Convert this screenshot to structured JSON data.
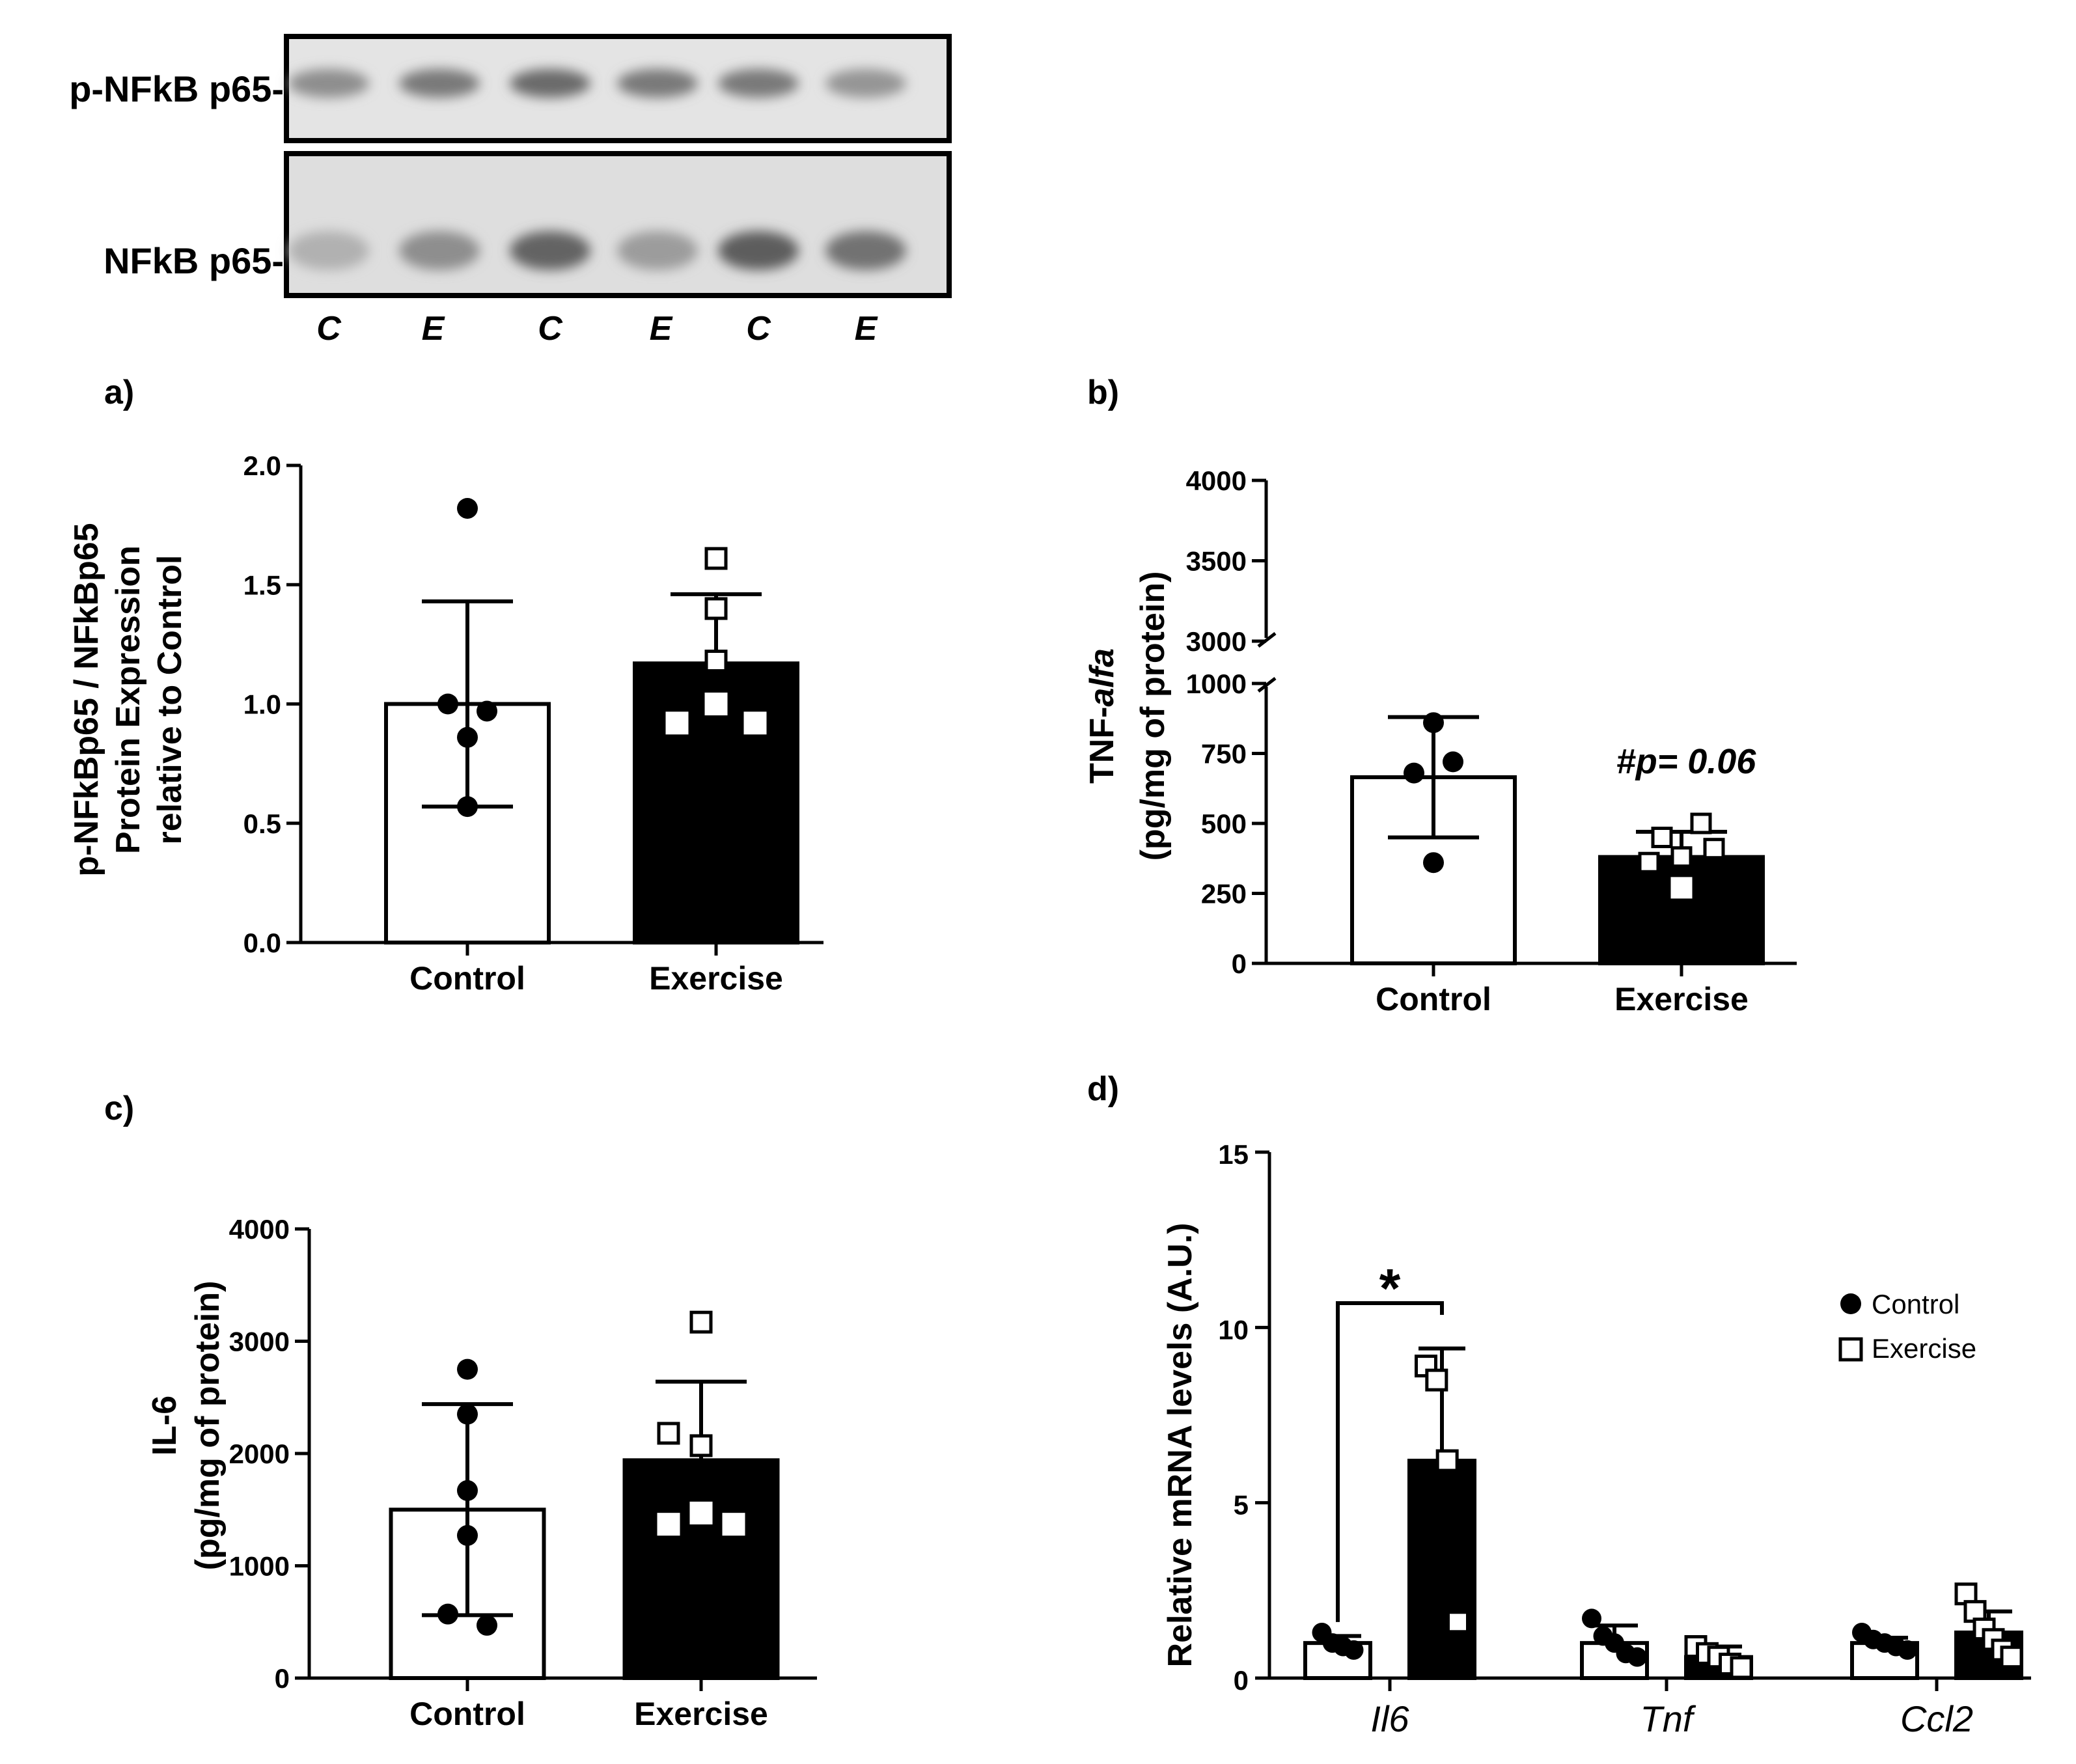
{
  "blot": {
    "rows": [
      {
        "label": "p-NFkB p65-",
        "bands": [
          0.45,
          0.6,
          0.7,
          0.6,
          0.6,
          0.4
        ]
      },
      {
        "label": "NFkB p65-",
        "bands": [
          0.2,
          0.45,
          0.75,
          0.35,
          0.8,
          0.65
        ]
      }
    ],
    "lanes": [
      "C",
      "E",
      "C",
      "E",
      "C",
      "E"
    ]
  },
  "chart_data": [
    {
      "panel": "a)",
      "type": "bar",
      "ylabel": [
        "p-NFkBp65 / NFkBp65",
        "Protein Expression",
        "relative to Control"
      ],
      "ylim": [
        0,
        2.0
      ],
      "yticks": [
        "0.0",
        "0.5",
        "1.0",
        "1.5",
        "2.0"
      ],
      "categories": [
        "Control",
        "Exercise"
      ],
      "values": [
        1.0,
        1.17
      ],
      "sd": [
        0.43,
        0.29
      ],
      "points": [
        [
          1.82,
          1.0,
          0.97,
          0.86,
          0.57
        ],
        [
          1.61,
          1.4,
          1.18,
          1.0,
          0.92,
          0.92
        ]
      ]
    },
    {
      "panel": "b)",
      "type": "bar",
      "ylabel": [
        "TNF-alfa",
        "(pg/mg of protein)"
      ],
      "ylim": [
        0,
        4000
      ],
      "axis_break": [
        1000,
        3000
      ],
      "yticks": [
        "0",
        "250",
        "500",
        "750",
        "1000",
        "3000",
        "3500",
        "4000"
      ],
      "categories": [
        "Control",
        "Exercise"
      ],
      "values": [
        665,
        380
      ],
      "sd": [
        215,
        90
      ],
      "points": [
        [
          860,
          720,
          680,
          360
        ],
        [
          500,
          450,
          410,
          380,
          360,
          270
        ]
      ],
      "annotation": "#p= 0.06"
    },
    {
      "panel": "c)",
      "type": "bar",
      "ylabel": [
        "IL-6",
        "(pg/mg of protein)"
      ],
      "ylim": [
        0,
        4000
      ],
      "yticks": [
        "0",
        "1000",
        "2000",
        "3000",
        "4000"
      ],
      "categories": [
        "Control",
        "Exercise"
      ],
      "values": [
        1500,
        1940
      ],
      "sd": [
        940,
        700
      ],
      "points": [
        [
          2750,
          2350,
          1670,
          1270,
          570,
          470
        ],
        [
          3170,
          2180,
          2070,
          1470,
          1370,
          1370
        ]
      ]
    },
    {
      "panel": "d)",
      "type": "bar",
      "ylabel": "Relative mRNA levels (A.U.)",
      "ylim": [
        0,
        15
      ],
      "yticks": [
        "0",
        "5",
        "10",
        "15"
      ],
      "categories": [
        "Il6",
        "Tnf",
        "Ccl2"
      ],
      "series": [
        {
          "name": "Control",
          "values": [
            1.0,
            1.0,
            1.0
          ],
          "sd": [
            0.2,
            0.5,
            0.15
          ],
          "points": [
            [
              1.3,
              1.0,
              0.9,
              0.8
            ],
            [
              1.7,
              1.2,
              1.0,
              0.7,
              0.6
            ],
            [
              1.3,
              1.1,
              1.0,
              0.9,
              0.8
            ]
          ]
        },
        {
          "name": "Exercise",
          "values": [
            6.2,
            0.6,
            1.3
          ],
          "sd": [
            3.2,
            0.3,
            0.6
          ],
          "points": [
            [
              8.9,
              8.5,
              6.2,
              1.6
            ],
            [
              0.9,
              0.7,
              0.6,
              0.4,
              0.3
            ],
            [
              2.4,
              1.9,
              1.4,
              1.1,
              0.8,
              0.6
            ]
          ]
        }
      ],
      "significance": "*",
      "legend_position": "right"
    }
  ]
}
